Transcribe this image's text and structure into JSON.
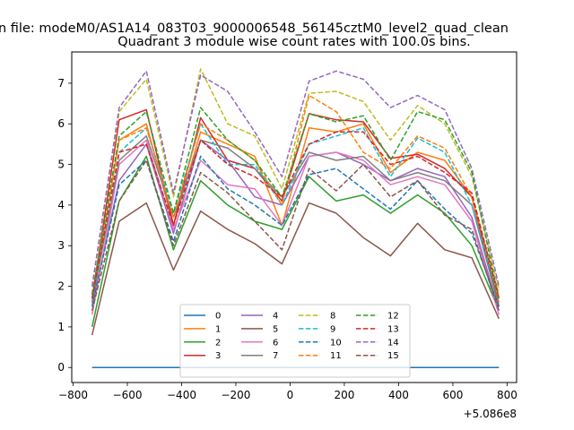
{
  "suptitle": "n file: modeM0/AS1A14_083T03_9000006548_56145cztM0_level2_quad_clean",
  "chart_data": {
    "type": "line",
    "title": "Quadrant 3 module wise count rates with 100.0s bins.",
    "xlabel": "",
    "ylabel": "",
    "x_offset_label": "+5.086e8",
    "xlim": [
      -805,
      835
    ],
    "ylim": [
      -0.37,
      7.77
    ],
    "xticks": [
      -800,
      -600,
      -400,
      -200,
      0,
      200,
      400,
      600,
      800
    ],
    "xtick_labels": [
      "−800",
      "−600",
      "−400",
      "−200",
      "0",
      "200",
      "400",
      "600",
      "800"
    ],
    "yticks": [
      0,
      1,
      2,
      3,
      4,
      5,
      6,
      7
    ],
    "ytick_labels": [
      "0",
      "1",
      "2",
      "3",
      "4",
      "5",
      "6",
      "7"
    ],
    "grid": false,
    "legend_position": "lower-center",
    "legend_columns": 4,
    "x": [
      -730,
      -630,
      -530,
      -430,
      -330,
      -230,
      -130,
      -30,
      70,
      170,
      270,
      370,
      470,
      570,
      670,
      770
    ],
    "series": [
      {
        "name": "0",
        "color": "#1f77b4",
        "dash": "solid",
        "values": [
          0,
          0,
          0,
          0,
          0,
          0,
          0,
          0,
          0,
          0,
          0,
          0,
          0,
          0,
          0,
          0
        ]
      },
      {
        "name": "1",
        "color": "#ff7f0e",
        "dash": "solid",
        "values": [
          1.6,
          5.6,
          6.0,
          3.5,
          5.8,
          5.5,
          5.2,
          3.5,
          5.9,
          5.8,
          6.0,
          4.8,
          5.3,
          5.1,
          4.2,
          1.6
        ]
      },
      {
        "name": "2",
        "color": "#2ca02c",
        "dash": "solid",
        "values": [
          1.0,
          4.1,
          5.2,
          2.9,
          4.6,
          4.0,
          3.6,
          3.4,
          4.7,
          4.1,
          4.25,
          3.8,
          4.25,
          3.8,
          3.0,
          1.4
        ]
      },
      {
        "name": "3",
        "color": "#d62728",
        "dash": "solid",
        "values": [
          1.7,
          6.1,
          6.35,
          3.5,
          6.15,
          5.1,
          4.9,
          4.1,
          6.25,
          6.1,
          6.05,
          5.15,
          5.25,
          4.9,
          4.2,
          1.5
        ]
      },
      {
        "name": "4",
        "color": "#9467bd",
        "dash": "solid",
        "values": [
          1.5,
          4.6,
          5.5,
          3.3,
          5.6,
          5.1,
          4.2,
          4.0,
          5.2,
          5.3,
          5.0,
          4.6,
          4.9,
          4.7,
          3.7,
          1.4
        ]
      },
      {
        "name": "5",
        "color": "#8c564b",
        "dash": "solid",
        "values": [
          0.8,
          3.6,
          4.05,
          2.4,
          3.85,
          3.4,
          3.05,
          2.55,
          4.05,
          3.8,
          3.2,
          2.75,
          3.55,
          2.9,
          2.7,
          1.2
        ]
      },
      {
        "name": "6",
        "color": "#e377c2",
        "dash": "solid",
        "values": [
          1.3,
          5.0,
          5.6,
          3.4,
          5.1,
          4.5,
          4.4,
          3.5,
          5.2,
          5.3,
          5.1,
          4.5,
          4.7,
          4.5,
          3.6,
          1.3
        ]
      },
      {
        "name": "7",
        "color": "#7f7f7f",
        "dash": "solid",
        "values": [
          1.6,
          5.1,
          5.7,
          3.7,
          5.6,
          5.4,
          4.9,
          4.2,
          5.3,
          5.1,
          5.2,
          4.6,
          4.8,
          4.6,
          4.0,
          1.5
        ]
      },
      {
        "name": "8",
        "color": "#bcbd22",
        "dash": "dashed",
        "values": [
          2.0,
          6.3,
          7.1,
          4.2,
          7.35,
          6.0,
          5.7,
          4.4,
          6.75,
          6.8,
          6.55,
          5.6,
          6.45,
          6.0,
          4.7,
          1.9
        ]
      },
      {
        "name": "9",
        "color": "#17becf",
        "dash": "dashed",
        "values": [
          1.7,
          5.3,
          5.9,
          3.8,
          6.0,
          5.0,
          5.0,
          4.0,
          5.5,
          5.7,
          5.9,
          4.7,
          5.65,
          5.3,
          4.0,
          1.7
        ]
      },
      {
        "name": "10",
        "color": "#1f77b4",
        "dash": "dashed",
        "values": [
          1.5,
          4.5,
          5.1,
          3.1,
          5.2,
          4.4,
          4.0,
          3.5,
          4.75,
          4.9,
          4.4,
          3.9,
          4.6,
          3.9,
          3.3,
          1.5
        ]
      },
      {
        "name": "11",
        "color": "#ff7f0e",
        "dash": "dashed",
        "values": [
          1.8,
          5.6,
          5.9,
          3.7,
          6.0,
          5.6,
          5.1,
          4.0,
          6.7,
          6.3,
          5.3,
          4.9,
          5.7,
          5.4,
          4.2,
          1.8
        ]
      },
      {
        "name": "12",
        "color": "#2ca02c",
        "dash": "dashed",
        "values": [
          1.8,
          5.7,
          6.3,
          3.8,
          6.4,
          5.6,
          5.1,
          4.2,
          6.25,
          6.05,
          6.2,
          5.1,
          6.3,
          6.1,
          4.8,
          1.7
        ]
      },
      {
        "name": "13",
        "color": "#d62728",
        "dash": "dashed",
        "values": [
          1.7,
          5.3,
          5.5,
          3.5,
          5.6,
          5.0,
          4.7,
          4.2,
          5.5,
          5.8,
          5.8,
          5.0,
          5.2,
          4.8,
          4.3,
          1.7
        ]
      },
      {
        "name": "14",
        "color": "#9467bd",
        "dash": "dashed",
        "values": [
          2.0,
          6.4,
          7.3,
          4.3,
          7.2,
          6.8,
          5.8,
          4.7,
          7.05,
          7.3,
          7.1,
          6.4,
          6.7,
          6.35,
          4.9,
          2.0
        ]
      },
      {
        "name": "15",
        "color": "#8c564b",
        "dash": "dashed",
        "values": [
          1.4,
          4.1,
          5.1,
          3.0,
          4.8,
          4.3,
          3.6,
          2.9,
          4.9,
          4.35,
          5.0,
          4.2,
          4.6,
          3.75,
          3.4,
          1.4
        ]
      }
    ]
  }
}
